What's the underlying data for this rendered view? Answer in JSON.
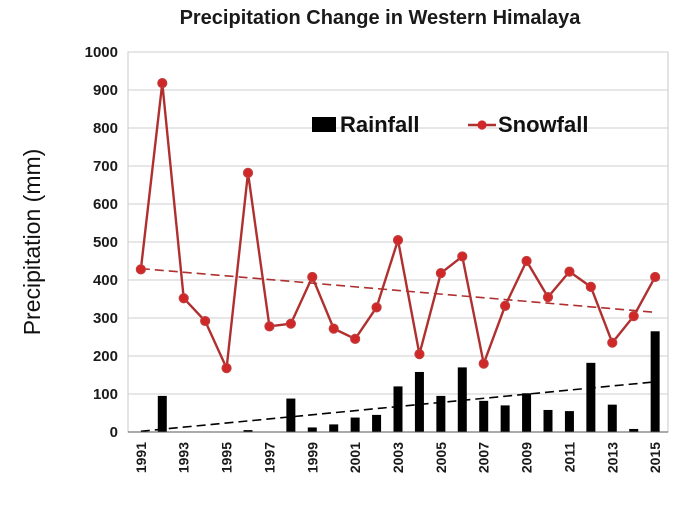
{
  "chart_data": {
    "type": "bar+line",
    "title": "Precipitation Change in Western Himalaya",
    "xlabel": "",
    "ylabel": "Precipitation (mm)",
    "ylim": [
      0,
      1000
    ],
    "yticks": [
      0,
      100,
      200,
      300,
      400,
      500,
      600,
      700,
      800,
      900,
      1000
    ],
    "grid": true,
    "legend_position": "top-right",
    "x": [
      1991,
      1992,
      1993,
      1994,
      1995,
      1996,
      1997,
      1998,
      1999,
      2000,
      2001,
      2002,
      2003,
      2004,
      2005,
      2006,
      2007,
      2008,
      2009,
      2010,
      2011,
      2012,
      2013,
      2014,
      2015
    ],
    "x_tick_labels": [
      "1991",
      "1993",
      "1995",
      "1997",
      "1999",
      "2001",
      "2003",
      "2005",
      "2007",
      "2009",
      "2011",
      "2013",
      "2015"
    ],
    "series": [
      {
        "name": "Rainfall",
        "kind": "bar",
        "color": "#000000",
        "values": [
          0,
          95,
          0,
          0,
          0,
          5,
          0,
          88,
          12,
          20,
          38,
          45,
          120,
          158,
          95,
          170,
          82,
          70,
          102,
          58,
          55,
          182,
          72,
          8,
          265
        ]
      },
      {
        "name": "Snowfall",
        "kind": "line",
        "color": "#b03030",
        "marker_color": "#d02828",
        "values": [
          428,
          918,
          352,
          292,
          168,
          682,
          278,
          285,
          408,
          272,
          245,
          328,
          505,
          205,
          418,
          462,
          180,
          332,
          450,
          355,
          422,
          382,
          235,
          305,
          408
        ]
      }
    ],
    "trendlines": [
      {
        "series": "Snowfall",
        "color": "#b03030",
        "style": "dashed",
        "start": [
          1991,
          430
        ],
        "end": [
          2015,
          315
        ]
      },
      {
        "series": "Rainfall",
        "color": "#000000",
        "style": "dashed",
        "start": [
          1991,
          2
        ],
        "end": [
          2015,
          132
        ]
      }
    ]
  }
}
